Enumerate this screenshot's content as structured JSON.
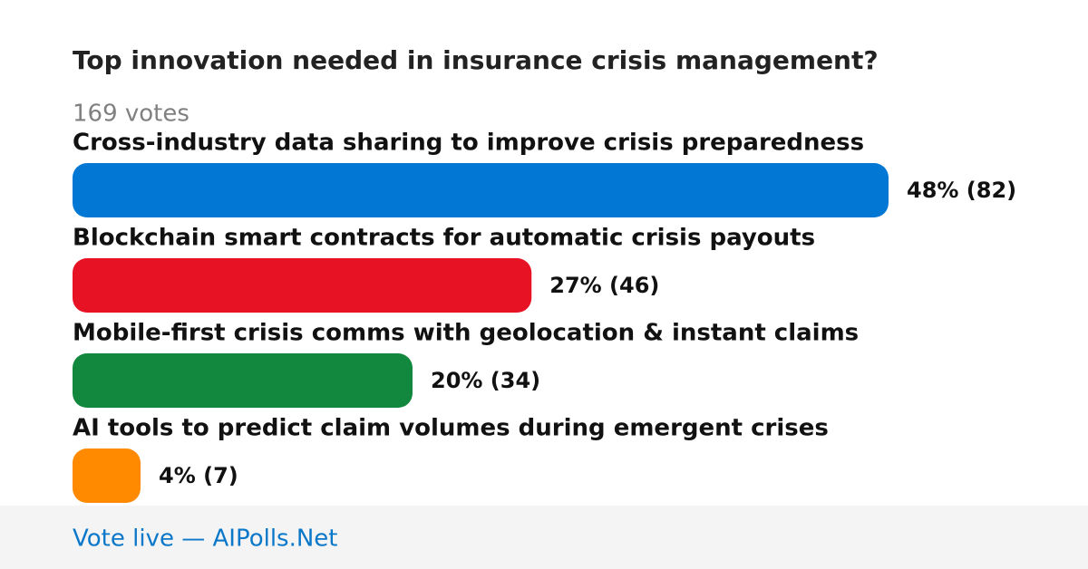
{
  "chart_data": {
    "type": "bar",
    "orientation": "horizontal",
    "title": "Top innovation needed in insurance crisis management?",
    "subtitle": "169 votes",
    "categories": [
      "Cross-industry data sharing to improve crisis preparedness",
      "Blockchain smart contracts for automatic crisis payouts",
      "Mobile-first crisis comms with geolocation & instant claims",
      "AI tools to predict claim volumes during emergent crises"
    ],
    "values": [
      48,
      27,
      20,
      4
    ],
    "value_labels": [
      "48% (82)",
      "27% (46)",
      "20% (34)",
      "4% (7)"
    ],
    "colors": [
      "#0277d4",
      "#e81225",
      "#12883e",
      "#ff8a00"
    ]
  },
  "footer": "Vote live — AIPolls.Net"
}
